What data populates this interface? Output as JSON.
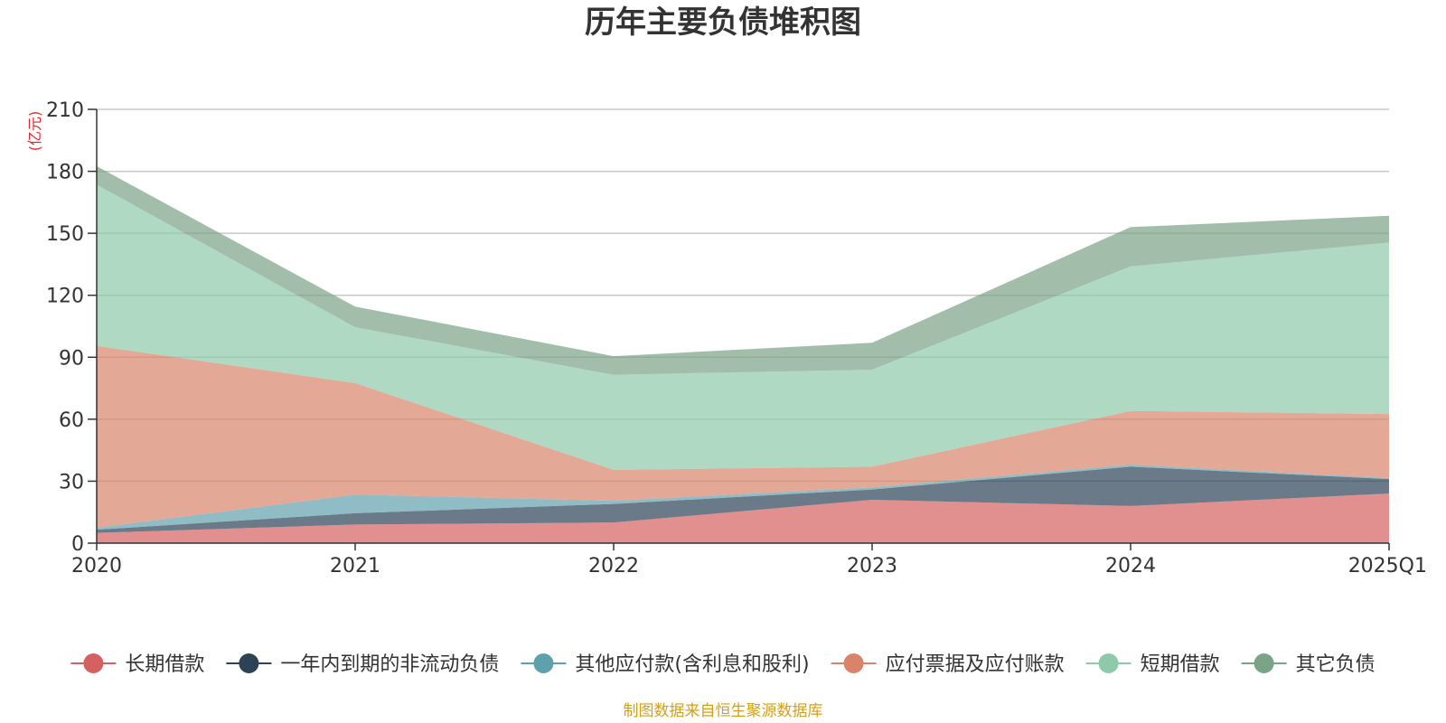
{
  "chart_data": {
    "type": "area",
    "stacked": true,
    "title": "历年主要负债堆积图",
    "unit_label": "(亿元)",
    "source_note": "制图数据来自恒生聚源数据库",
    "categories": [
      "2020",
      "2021",
      "2022",
      "2023",
      "2024",
      "2025Q1"
    ],
    "ylim": [
      0,
      210
    ],
    "yticks": [
      0,
      30,
      60,
      90,
      120,
      150,
      180,
      210
    ],
    "grid": true,
    "legend_position": "bottom",
    "series": [
      {
        "name": "长期借款",
        "color": "#d4605f",
        "values": [
          5,
          9,
          10,
          21,
          18,
          24
        ]
      },
      {
        "name": "一年内到期的非流动负债",
        "color": "#2c4255",
        "values": [
          1.5,
          5.5,
          9,
          5,
          19,
          7
        ]
      },
      {
        "name": "其他应付款(含利息和股利)",
        "color": "#5fa0ad",
        "values": [
          1,
          9,
          1.5,
          1,
          1,
          0.5
        ]
      },
      {
        "name": "应付票据及应付账款",
        "color": "#d9846a",
        "values": [
          88,
          54,
          15,
          10,
          26,
          31
        ]
      },
      {
        "name": "短期借款",
        "color": "#8fc9ab",
        "values": [
          78,
          27,
          46,
          47,
          70,
          83
        ]
      },
      {
        "name": "其它负债",
        "color": "#7aa387",
        "values": [
          9,
          10,
          9,
          13,
          19,
          13
        ]
      }
    ]
  }
}
